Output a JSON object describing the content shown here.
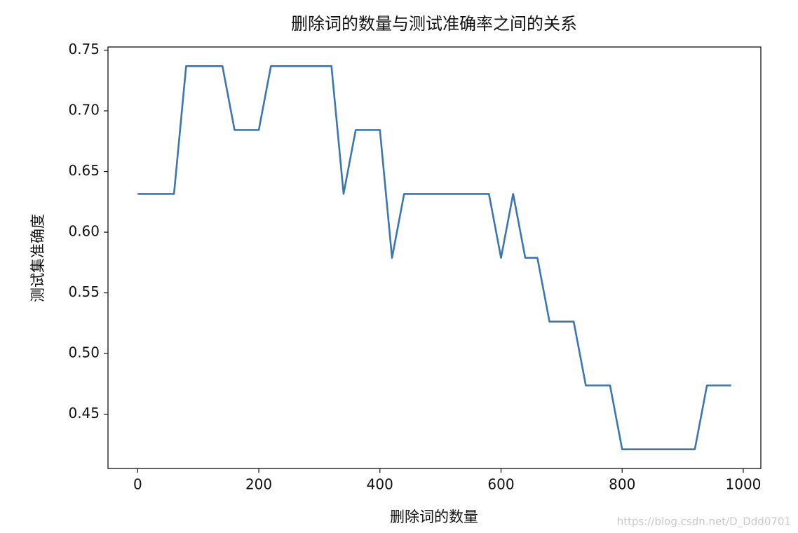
{
  "chart_data": {
    "type": "line",
    "title": "删除词的数量与测试准确率之间的关系",
    "x_label": "删除词的数量",
    "y_label": "测试集准确度",
    "watermark": "https://blog.csdn.net/D_Ddd0701",
    "x": [
      0,
      20,
      40,
      60,
      80,
      100,
      120,
      140,
      160,
      180,
      200,
      220,
      240,
      260,
      280,
      300,
      320,
      340,
      360,
      380,
      400,
      420,
      440,
      460,
      480,
      500,
      520,
      540,
      560,
      580,
      600,
      620,
      640,
      660,
      680,
      700,
      720,
      740,
      760,
      780,
      800,
      820,
      840,
      860,
      880,
      900,
      920,
      940,
      960,
      980
    ],
    "series": [
      {
        "color": "#3a76b1",
        "values": [
          0.6316,
          0.6316,
          0.6316,
          0.6316,
          0.7368,
          0.7368,
          0.7368,
          0.7368,
          0.6842,
          0.6842,
          0.6842,
          0.7368,
          0.7368,
          0.7368,
          0.7368,
          0.7368,
          0.7368,
          0.6316,
          0.6842,
          0.6842,
          0.6842,
          0.5789,
          0.6316,
          0.6316,
          0.6316,
          0.6316,
          0.6316,
          0.6316,
          0.6316,
          0.6316,
          0.5789,
          0.6316,
          0.5789,
          0.5789,
          0.5263,
          0.5263,
          0.5263,
          0.4737,
          0.4737,
          0.4737,
          0.4211,
          0.4211,
          0.4211,
          0.4211,
          0.4211,
          0.4211,
          0.4211,
          0.4737,
          0.4737,
          0.4737
        ]
      }
    ],
    "xlim": [
      -49,
      1029
    ],
    "ylim": [
      0.4053,
      0.7526
    ],
    "xticks": [
      0,
      200,
      400,
      600,
      800,
      1000
    ],
    "yticks": [
      0.45,
      {
        "value": 0.5,
        "label": "0.50"
      },
      0.55,
      {
        "value": 0.6,
        "label": "0.60"
      },
      0.65,
      {
        "value": 0.7,
        "label": "0.70"
      },
      0.75
    ]
  }
}
